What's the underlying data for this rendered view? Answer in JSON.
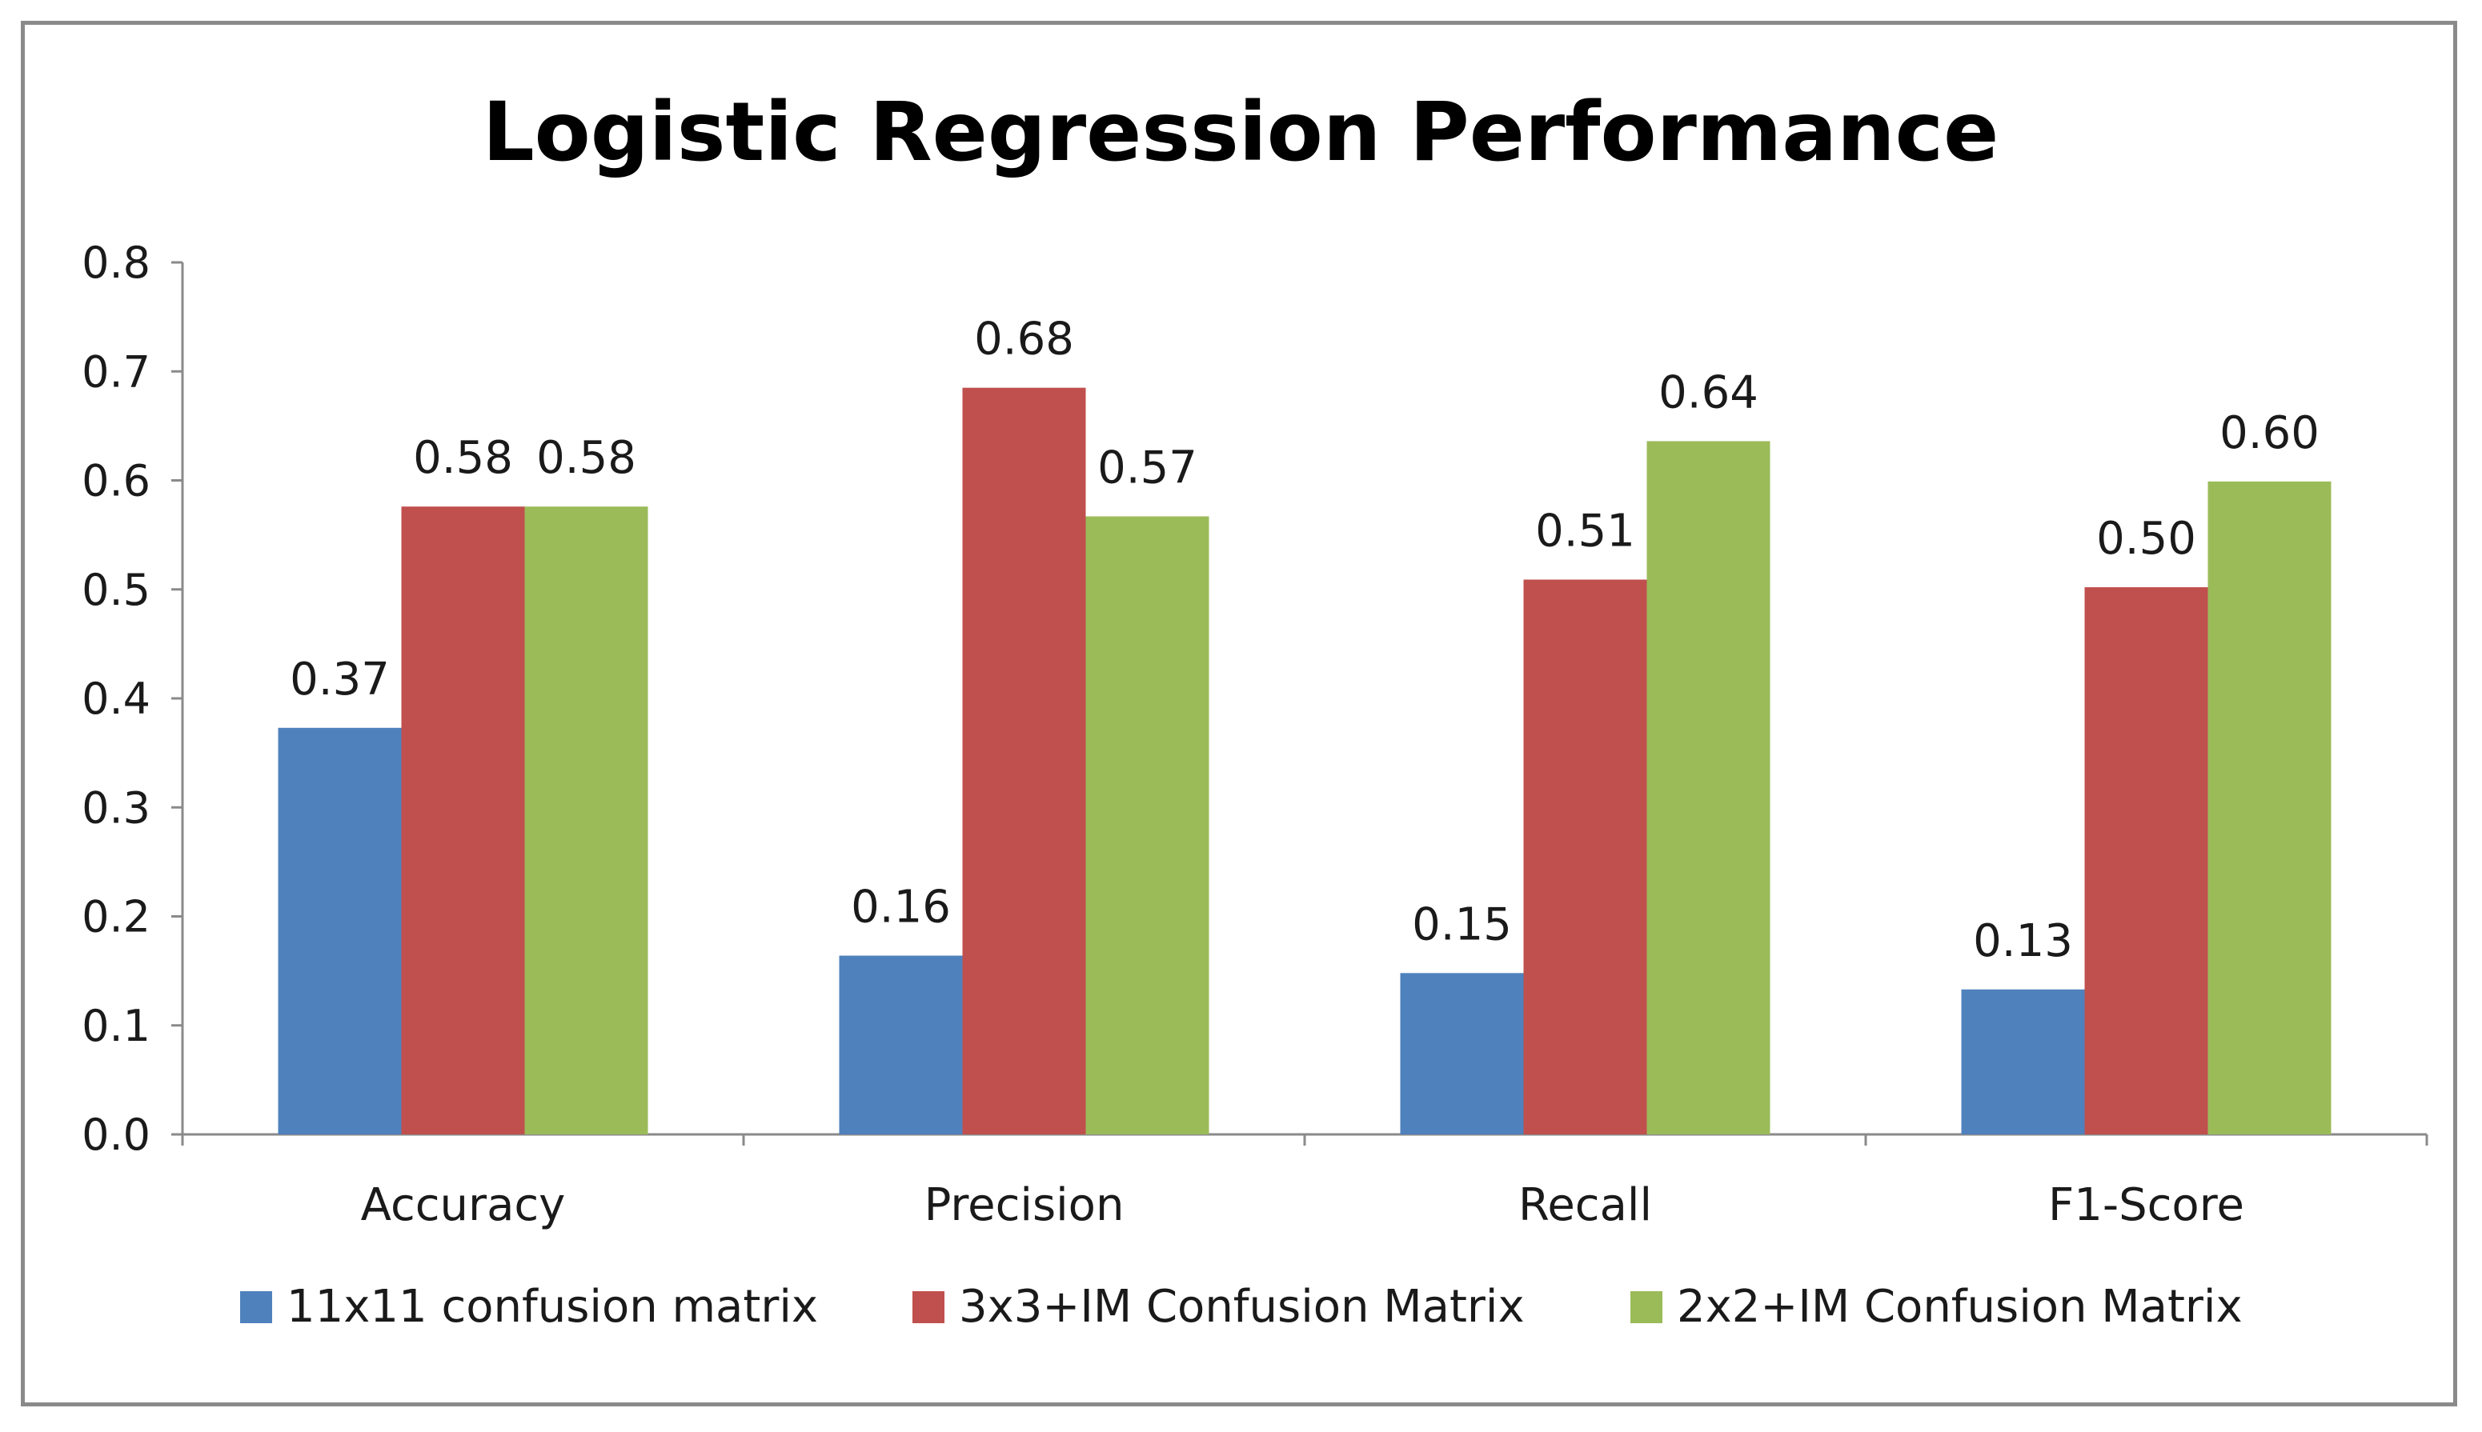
{
  "chart_data": {
    "type": "bar",
    "title": "Logistic Regression Performance",
    "xlabel": "",
    "ylabel": "",
    "ylim": [
      0,
      0.8
    ],
    "yticks": [
      "0.0",
      "0.1",
      "0.2",
      "0.3",
      "0.4",
      "0.5",
      "0.6",
      "0.7",
      "0.8"
    ],
    "categories": [
      "Accuracy",
      "Precision",
      "Recall",
      "F1-Score"
    ],
    "series": [
      {
        "name": "11x11 confusion matrix",
        "color": "#4f81bd",
        "values": [
          0.373,
          0.164,
          0.148,
          0.133
        ],
        "labels": [
          "0.37",
          "0.16",
          "0.15",
          "0.13"
        ]
      },
      {
        "name": "3x3+IM Confusion Matrix",
        "color": "#c0504d",
        "values": [
          0.576,
          0.685,
          0.509,
          0.502
        ],
        "labels": [
          "0.58",
          "0.68",
          "0.51",
          "0.50"
        ]
      },
      {
        "name": "2x2+IM Confusion Matrix",
        "color": "#9bbb59",
        "values": [
          0.576,
          0.567,
          0.636,
          0.599
        ],
        "labels": [
          "0.58",
          "0.57",
          "0.64",
          "0.60"
        ]
      }
    ],
    "legend_position": "bottom",
    "grid": false
  }
}
